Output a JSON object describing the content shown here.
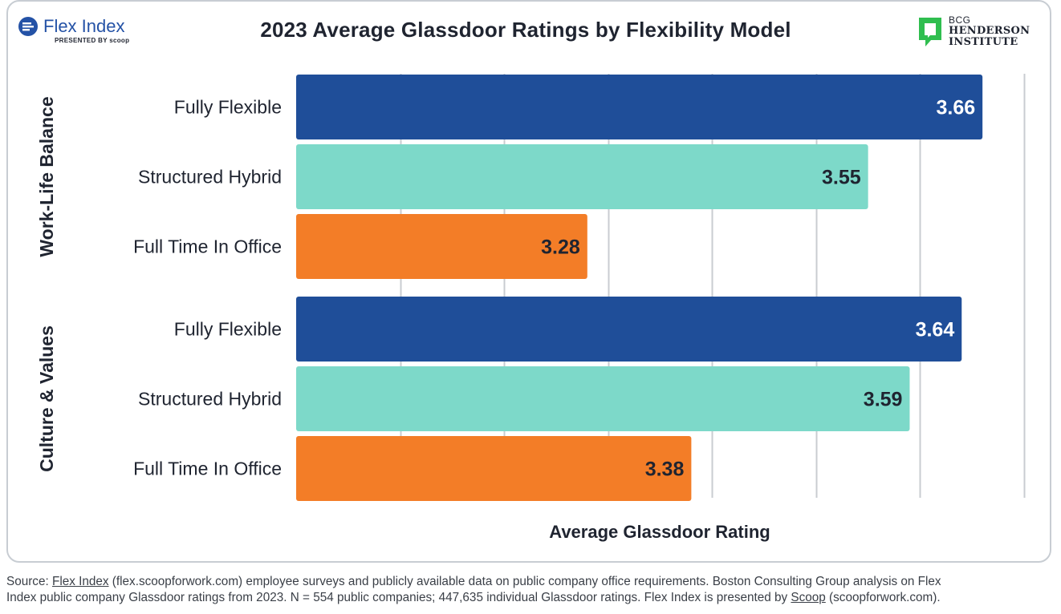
{
  "brand_left": {
    "name": "Flex Index",
    "presented_by": "PRESENTED BY scoop",
    "icon": "flex-index-logo-icon",
    "color": "#2452a6"
  },
  "brand_right": {
    "line1": "BCG",
    "line2": "HENDERSON",
    "line3": "INSTITUTE",
    "icon": "bcg-henderson-logo-icon",
    "color": "#2fbe4f"
  },
  "chart_data": {
    "type": "bar",
    "orientation": "horizontal",
    "title": "2023 Average Glassdoor Ratings by Flexibility Model",
    "xlabel": "Average Glassdoor Rating",
    "xlim": [
      3.0,
      3.7
    ],
    "grid": true,
    "groups": [
      {
        "label": "Work-Life Balance",
        "bars": [
          {
            "category": "Fully Flexible",
            "value": 3.66,
            "value_label": "3.66",
            "color": "#1f4e99",
            "label_color": "#ffffff"
          },
          {
            "category": "Structured Hybrid",
            "value": 3.55,
            "value_label": "3.55",
            "color": "#7dd9c9",
            "label_color": "#1f2430"
          },
          {
            "category": "Full Time In Office",
            "value": 3.28,
            "value_label": "3.28",
            "color": "#f37d27",
            "label_color": "#1f2430"
          }
        ]
      },
      {
        "label": "Culture & Values",
        "bars": [
          {
            "category": "Fully Flexible",
            "value": 3.64,
            "value_label": "3.64",
            "color": "#1f4e99",
            "label_color": "#ffffff"
          },
          {
            "category": "Structured Hybrid",
            "value": 3.59,
            "value_label": "3.59",
            "color": "#7dd9c9",
            "label_color": "#1f2430"
          },
          {
            "category": "Full Time In Office",
            "value": 3.38,
            "value_label": "3.38",
            "color": "#f37d27",
            "label_color": "#1f2430"
          }
        ]
      }
    ]
  },
  "source": {
    "prefix": "Source: ",
    "link1": "Flex Index",
    "middle": " (flex.scoopforwork.com) employee surveys and publicly available data on public company office requirements. Boston Consulting Group analysis on Flex",
    "line2_start": "Index public company Glassdoor ratings from 2023. N = 554 public companies; 447,635 individual Glassdoor ratings. Flex Index is presented by ",
    "link2": "Scoop",
    "line2_end": " (scoopforwork.com)."
  }
}
